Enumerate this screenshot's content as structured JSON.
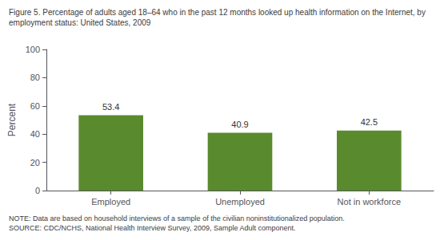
{
  "chart_data": {
    "type": "bar",
    "title": "Figure 5. Percentage of adults aged 18–64 who in the past 12 months looked up health information on the Internet, by\nemployment status: United States, 2009",
    "note": "NOTE: Data are based on household interviews of a sample of the civilian noninstitutionalized population.\nSOURCE: CDC/NCHS, National Health Interview Survey, 2009, Sample Adult component.",
    "ylabel": "Percent",
    "categories": [
      "Employed",
      "Unemployed",
      "Not in workforce"
    ],
    "values": [
      53.4,
      40.9,
      42.5
    ],
    "color": "#5a8a2e",
    "ylim": [
      0,
      100
    ],
    "yticks": [
      0,
      20,
      40,
      60,
      80,
      100
    ],
    "data_labels": true,
    "grid": false
  }
}
